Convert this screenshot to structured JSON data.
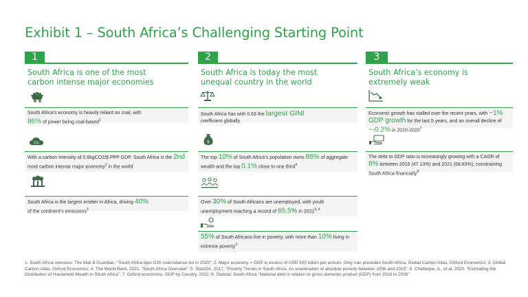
{
  "title": "Exhibit 1 – South Africa’s Challenging Starting Point",
  "columns": [
    {
      "number": "1",
      "heading": "South Africa is one of the most carbon intense major economies",
      "items": [
        {
          "pre": "South Africa’s economy is heavily reliant on coal, with",
          "em": "86%",
          "post": "of power being coal-based",
          "sup": "1"
        },
        {
          "pre": "With a carbon intensity of 0.6kgCO2/$ PPP GDP, South Africa is the",
          "em": "2nd",
          "post": "most carbon intense major economy",
          "sup": "2",
          "post2": "in the world"
        },
        {
          "pre": "South Africa is the largest emitter in Africa, driving",
          "em": "40%",
          "post": "of the continent’s emissions",
          "sup": "3"
        }
      ],
      "icons": [
        "coal-cart-icon",
        "co2-cloud-icon",
        "factory-emissions-icon"
      ]
    },
    {
      "number": "2",
      "heading": "South Africa is today the most unequal country in the world",
      "items": [
        {
          "pre": "South Africa has with 0.63 the",
          "em": "largest GINI",
          "post": "coefficient globally",
          "sup": ""
        },
        {
          "pre": "The top",
          "em": "10%",
          "mid": "of South Africa’s population owns",
          "em2": "86%",
          "mid2": "of aggregate wealth and the top",
          "em3": "0.1%",
          "post": "close to one third",
          "sup": "4"
        },
        {
          "pre": "Over",
          "em": "30%",
          "mid": "of South Africans are unemployed, with youth unemployment reaching a record of",
          "em2": "65.5%",
          "post": "in 2021",
          "sup": "5, 6"
        },
        {
          "pre": "",
          "em": "55%",
          "mid": "of South Africans live in poverty, with more than",
          "em2": "10%",
          "post": "living in extreme poverty",
          "sup": "3"
        }
      ],
      "icons": [
        "balance-scale-icon",
        "money-bag-icon",
        "people-group-icon",
        "hand-coin-icon"
      ]
    },
    {
      "number": "3",
      "heading": "South Africa’s economy is extremely weak",
      "items": [
        {
          "pre": "Economic growth has stalled over the recent years, with",
          "em": "~1% GDP growth",
          "mid": "for the last 5 years, and an overall decline of",
          "em2": "~-0.2%",
          "post": "in 2010-2020",
          "sup": "7"
        },
        {
          "pre": "The debt to GDP ratio is increasingly growing with a CAGR of",
          "em": "8%",
          "post": "between 2016 (47.13%) and 2021 (68.83%), constraining South Africa financially",
          "sup": "8"
        }
      ],
      "icons": [
        "declining-chart-icon",
        "hand-cash-icon"
      ]
    }
  ],
  "footnote": "1. South Africa overview: The Mail & Guardian, \"South Africa tops G20 coal-reliance list in 2020\"; 2. Major economy = GDP in excess of USD 500 billion per annum. Only Iran precedes South Africa, Global Carbon Atlas, Oxford Economics; 3. Global Carbon Atlas, Oxford Economics; 4. The World Bank, 2021, \"South Africa Overview\"; 5. StatsSA, 2017, \"Poverty Trends in South Africa. An examination of absolute poverty between 2006 and 2015\"; 6. Chatterjee, A., et al, 2020, \"Estimating the Distribution of Household Wealth in South Africa\"; 7. Oxford economics, GDP by Country, 2022; 8. Statista: South Africa \"National debt in relation to gross domestic product (GDP) from 2016 to 2026\"",
  "colors": {
    "accent": "#2fa24a",
    "box": "#f4f4f4",
    "text": "#333333"
  }
}
